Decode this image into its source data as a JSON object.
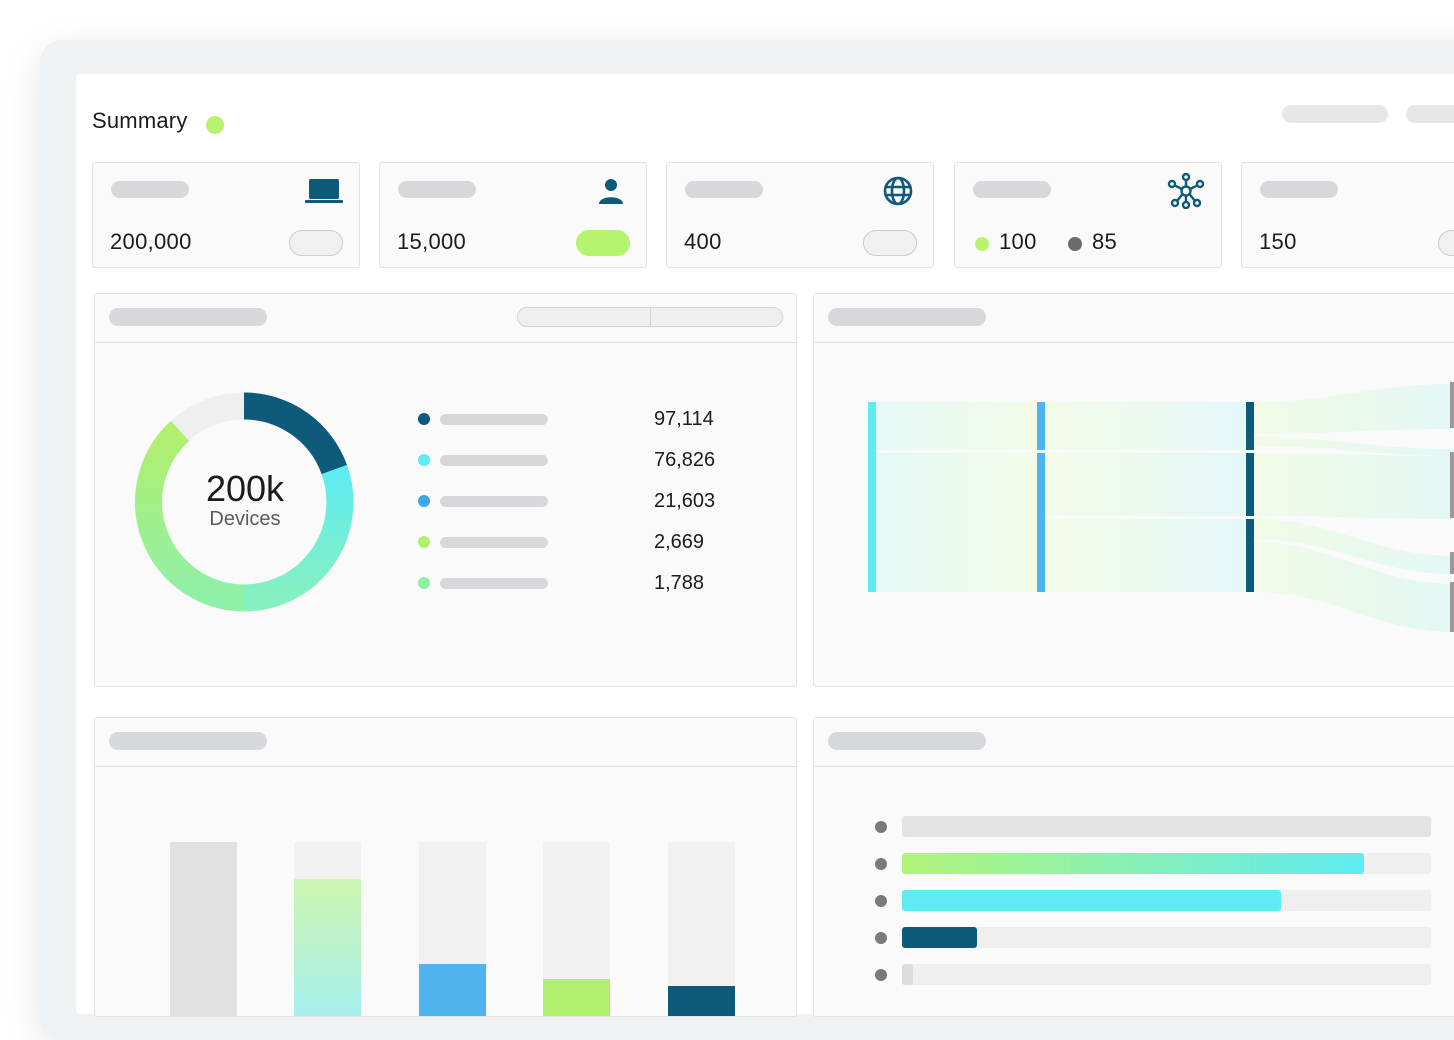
{
  "summary": {
    "title": "Summary",
    "status_color": "#b6f36e"
  },
  "stat_cards": [
    {
      "value": "200,000",
      "icon": "laptop-icon",
      "toggle_on": false
    },
    {
      "value": "15,000",
      "icon": "user-icon",
      "toggle_on": true
    },
    {
      "value": "400",
      "icon": "globe-icon",
      "toggle_on": false
    },
    {
      "values": [
        "100",
        "85"
      ],
      "dot_colors": [
        "#b6f36e",
        "#6b6b6b"
      ],
      "icon": "network-hub-icon"
    },
    {
      "value": "150",
      "toggle_on": false
    }
  ],
  "donut": {
    "center_value": "200k",
    "center_label": "Devices",
    "legend": [
      {
        "value": "97,114",
        "color": "#0e5a7a"
      },
      {
        "value": "76,826",
        "color": "#5eebf2"
      },
      {
        "value": "21,603",
        "color": "#3aa8e8"
      },
      {
        "value": "2,669",
        "color": "#b2ef6c"
      },
      {
        "value": "1,788",
        "color": "#8cf0a0"
      }
    ]
  },
  "colors": {
    "accent_green": "#b6f36e",
    "cyan": "#5eebf2",
    "blue": "#4fb3ee",
    "dark_teal": "#0e5a7a",
    "placeholder": "#d6d8db"
  }
}
